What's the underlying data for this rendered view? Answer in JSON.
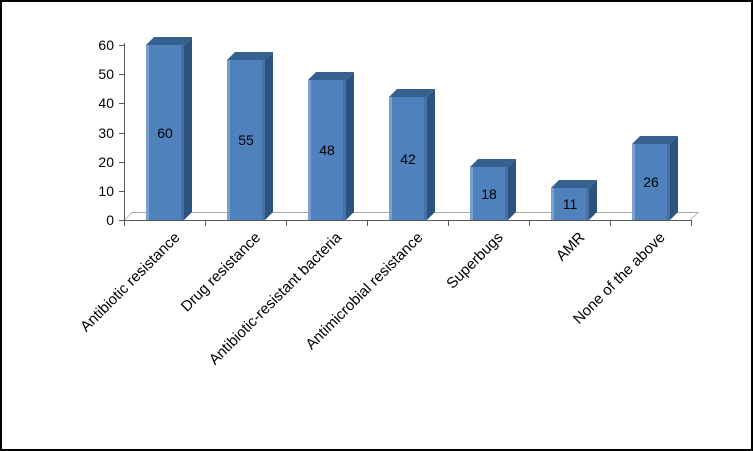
{
  "chart_data": {
    "type": "bar",
    "title": "",
    "categories": [
      "Antibiotic resistance",
      "Drug resistance",
      "Antibiotic-resistant bacteria",
      "Antimicrobial resistance",
      "Superbugs",
      "AMR",
      "None of the above"
    ],
    "values": [
      60,
      55,
      48,
      42,
      18,
      11,
      26
    ],
    "xlabel": "",
    "ylabel": "",
    "ylim": [
      0,
      60
    ],
    "yticks": [
      0,
      10,
      20,
      30,
      40,
      50,
      60
    ],
    "grid": "off",
    "legend": "none",
    "effect": "3d",
    "data_labels": "inside-center",
    "bar_face_color": "#4f81bd",
    "bar_top_color": "#36618e",
    "bar_side_color": "#2c5380",
    "axis_color": "#595959",
    "floor_edge_color": "#a6a6a6",
    "label_color": "#000000",
    "frame_color": "#000000"
  }
}
